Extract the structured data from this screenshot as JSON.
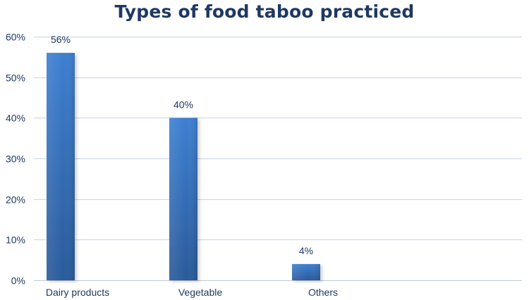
{
  "chart_data": {
    "type": "bar",
    "title": "Types of food taboo practiced",
    "xlabel": "",
    "ylabel": "",
    "categories": [
      "Dairy products",
      "Vegetable",
      "Others"
    ],
    "values": [
      56,
      40,
      4
    ],
    "data_labels": [
      "56%",
      "40%",
      "4%"
    ],
    "ylim": [
      0,
      60
    ],
    "yticks": [
      0,
      10,
      20,
      30,
      40,
      50,
      60
    ],
    "ytick_labels": [
      "0%",
      "10%",
      "20%",
      "30%",
      "40%",
      "50%",
      "60%"
    ],
    "grid": true,
    "legend": "none"
  },
  "colors": {
    "bar_top": "#3d7fd1",
    "bar_bottom": "#2a5a9a",
    "text": "#1f3864",
    "grid": "#c9d3e3"
  }
}
